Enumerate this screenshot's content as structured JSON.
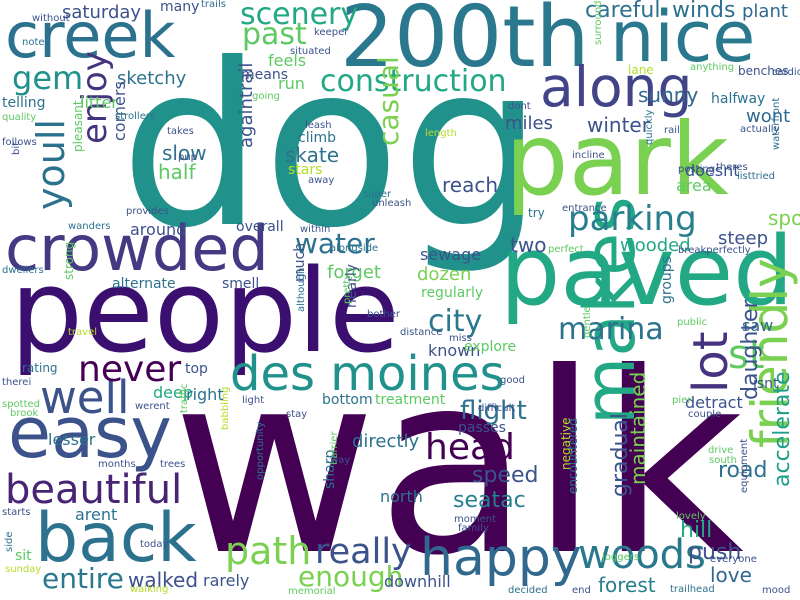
{
  "words": [
    {
      "text": "walk",
      "color": "#440154"
    },
    {
      "text": "dog",
      "color": "#21918c"
    },
    {
      "text": "people",
      "color": "#3b0f70"
    },
    {
      "text": "park",
      "color": "#7ad151"
    },
    {
      "text": "paved",
      "color": "#22a884"
    },
    {
      "text": "200th",
      "color": "#2a788e"
    },
    {
      "text": "creek",
      "color": "#2c728e"
    },
    {
      "text": "nice",
      "color": "#2a788e"
    },
    {
      "text": "crowded",
      "color": "#443983"
    },
    {
      "text": "easy",
      "color": "#3b528b"
    },
    {
      "text": "back",
      "color": "#2c728e"
    },
    {
      "text": "happy",
      "color": "#31688e"
    },
    {
      "text": "des moines",
      "color": "#21918c"
    },
    {
      "text": "makes",
      "color": "#22a884"
    },
    {
      "text": "along",
      "color": "#414487"
    },
    {
      "text": "beautiful",
      "color": "#482475"
    },
    {
      "text": "well",
      "color": "#3b528b"
    },
    {
      "text": "friendly",
      "color": "#7ad151"
    },
    {
      "text": "never",
      "color": "#440154"
    },
    {
      "text": "woods",
      "color": "#2a788e"
    },
    {
      "text": "path",
      "color": "#7ad151"
    },
    {
      "text": "lot",
      "color": "#46337e"
    },
    {
      "text": "st",
      "color": "#5ec962"
    },
    {
      "text": "really",
      "color": "#3b528b"
    },
    {
      "text": "entire",
      "color": "#2a788e"
    },
    {
      "text": "head",
      "color": "#440154"
    },
    {
      "text": "marina",
      "color": "#2c728e"
    },
    {
      "text": "gem",
      "color": "#21918c"
    },
    {
      "text": "parking",
      "color": "#277f8e"
    },
    {
      "text": "youll",
      "color": "#2c728e"
    },
    {
      "text": "enjoy",
      "color": "#46337e"
    },
    {
      "text": "construction",
      "color": "#22a884"
    },
    {
      "text": "past",
      "color": "#5ec962"
    },
    {
      "text": "scenery",
      "color": "#22a884"
    },
    {
      "text": "casual",
      "color": "#7ad151"
    },
    {
      "text": "water",
      "color": "#2c728e"
    },
    {
      "text": "city",
      "color": "#2a788e"
    },
    {
      "text": "enough",
      "color": "#7ad151"
    },
    {
      "text": "flight",
      "color": "#2c728e"
    },
    {
      "text": "speed",
      "color": "#3b528b"
    },
    {
      "text": "seatac",
      "color": "#277f8e"
    },
    {
      "text": "walked",
      "color": "#3b528b"
    },
    {
      "text": "forest",
      "color": "#277f8e"
    },
    {
      "text": "love",
      "color": "#31688e"
    },
    {
      "text": "accelerate",
      "color": "#1f9e89"
    },
    {
      "text": "gradual",
      "color": "#3b528b"
    },
    {
      "text": "maintained",
      "color": "#7ad151"
    },
    {
      "text": "hill",
      "color": "#22a884"
    },
    {
      "text": "push",
      "color": "#3b528b"
    },
    {
      "text": "road",
      "color": "#2c728e"
    },
    {
      "text": "daughter",
      "color": "#3b528b"
    },
    {
      "text": "careful",
      "color": "#2c728e"
    },
    {
      "text": "winds",
      "color": "#2c728e"
    },
    {
      "text": "plant",
      "color": "#31688e"
    },
    {
      "text": "saturday",
      "color": "#3b528b"
    },
    {
      "text": "many",
      "color": "#3b528b"
    },
    {
      "text": "trails",
      "color": "#2c728e"
    },
    {
      "text": "sketchy",
      "color": "#2c728e"
    },
    {
      "text": "means",
      "color": "#3b528b"
    },
    {
      "text": "feels",
      "color": "#5ec962"
    },
    {
      "text": "run",
      "color": "#5ec962"
    },
    {
      "text": "litter",
      "color": "#5ec962"
    },
    {
      "text": "slow",
      "color": "#2c728e"
    },
    {
      "text": "half",
      "color": "#5ec962"
    },
    {
      "text": "corners",
      "color": "#3b528b"
    },
    {
      "text": "skate",
      "color": "#2c728e"
    },
    {
      "text": "stars",
      "color": "#b5de2b"
    },
    {
      "text": "climb",
      "color": "#2c728e"
    },
    {
      "text": "againtrail",
      "color": "#3b528b"
    },
    {
      "text": "miles",
      "color": "#3b528b"
    },
    {
      "text": "winter",
      "color": "#3b528b"
    },
    {
      "text": "sunny",
      "color": "#31688e"
    },
    {
      "text": "wont",
      "color": "#31688e"
    },
    {
      "text": "area",
      "color": "#5ec962"
    },
    {
      "text": "doesnt",
      "color": "#3b528b"
    },
    {
      "text": "reach",
      "color": "#3b528b"
    },
    {
      "text": "spots",
      "color": "#7ad151"
    },
    {
      "text": "steep",
      "color": "#3b528b"
    },
    {
      "text": "two",
      "color": "#3b528b"
    },
    {
      "text": "wooded",
      "color": "#22a884"
    },
    {
      "text": "sewage",
      "color": "#3b528b"
    },
    {
      "text": "dozen",
      "color": "#7ad151"
    },
    {
      "text": "forget",
      "color": "#5ec962"
    },
    {
      "text": "around",
      "color": "#3b528b"
    },
    {
      "text": "overall",
      "color": "#3b528b"
    },
    {
      "text": "alternate",
      "color": "#2c728e"
    },
    {
      "text": "smell",
      "color": "#3b528b"
    },
    {
      "text": "much",
      "color": "#3b528b"
    },
    {
      "text": "nearly",
      "color": "#3b528b"
    },
    {
      "text": "known",
      "color": "#3b528b"
    },
    {
      "text": "regularly",
      "color": "#5ec962"
    },
    {
      "text": "explore",
      "color": "#5ec962"
    },
    {
      "text": "deep",
      "color": "#22a884"
    },
    {
      "text": "right",
      "color": "#2c728e"
    },
    {
      "text": "top",
      "color": "#3b528b"
    },
    {
      "text": "bottom",
      "color": "#2c728e"
    },
    {
      "text": "treatment",
      "color": "#5ec962"
    },
    {
      "text": "directly",
      "color": "#2c728e"
    },
    {
      "text": "passes",
      "color": "#3b528b"
    },
    {
      "text": "lesser",
      "color": "#2c728e"
    },
    {
      "text": "arent",
      "color": "#2c728e"
    },
    {
      "text": "sharp",
      "color": "#2c728e"
    },
    {
      "text": "north",
      "color": "#2c728e"
    },
    {
      "text": "rarely",
      "color": "#3b528b"
    },
    {
      "text": "downhill",
      "color": "#3b528b"
    },
    {
      "text": "isnt",
      "color": "#3b528b"
    },
    {
      "text": "detract",
      "color": "#3b528b"
    },
    {
      "text": "saw",
      "color": "#31688e"
    },
    {
      "text": "groups",
      "color": "#2c728e"
    },
    {
      "text": "negative",
      "color": "#b5de2b"
    },
    {
      "text": "encountered",
      "color": "#2c728e"
    },
    {
      "text": "lane",
      "color": "#b5de2b"
    },
    {
      "text": "benches",
      "color": "#3b528b"
    },
    {
      "text": "halfway",
      "color": "#2c728e"
    },
    {
      "text": "telling",
      "color": "#2c728e"
    },
    {
      "text": "quality",
      "color": "#5ec962"
    },
    {
      "text": "follows",
      "color": "#3b528b"
    },
    {
      "text": "pleasant",
      "color": "#5ec962"
    },
    {
      "text": "bit",
      "color": "#3b528b"
    },
    {
      "text": "strollers",
      "color": "#2c728e"
    },
    {
      "text": "takes",
      "color": "#3b528b"
    },
    {
      "text": "pup",
      "color": "#3b528b"
    },
    {
      "text": "provides",
      "color": "#3b528b"
    },
    {
      "text": "wanders",
      "color": "#2c728e"
    },
    {
      "text": "strong",
      "color": "#5ec962"
    },
    {
      "text": "dwellers",
      "color": "#2c728e"
    },
    {
      "text": "travel",
      "color": "#b5de2b"
    },
    {
      "text": "rating",
      "color": "#2c728e"
    },
    {
      "text": "therei",
      "color": "#3b528b"
    },
    {
      "text": "spotted",
      "color": "#5ec962"
    },
    {
      "text": "brook",
      "color": "#5ec962"
    },
    {
      "text": "werent",
      "color": "#3b528b"
    },
    {
      "text": "traffic",
      "color": "#5ec962"
    },
    {
      "text": "months",
      "color": "#3b528b"
    },
    {
      "text": "trees",
      "color": "#3b528b"
    },
    {
      "text": "babbling",
      "color": "#b5de2b"
    },
    {
      "text": "opportunity",
      "color": "#2c728e"
    },
    {
      "text": "today",
      "color": "#3b528b"
    },
    {
      "text": "sit",
      "color": "#5ec962"
    },
    {
      "text": "side",
      "color": "#2c728e"
    },
    {
      "text": "sunday",
      "color": "#b5de2b"
    },
    {
      "text": "starts",
      "color": "#3b528b"
    },
    {
      "text": "walking",
      "color": "#b5de2b"
    },
    {
      "text": "memorial",
      "color": "#5ec962"
    },
    {
      "text": "decided",
      "color": "#2c728e"
    },
    {
      "text": "end",
      "color": "#3b528b"
    },
    {
      "text": "trailhead",
      "color": "#2c728e"
    },
    {
      "text": "mood",
      "color": "#3b528b"
    },
    {
      "text": "without",
      "color": "#3b528b"
    },
    {
      "text": "note",
      "color": "#2c728e"
    },
    {
      "text": "keeper",
      "color": "#3b528b"
    },
    {
      "text": "situated",
      "color": "#3b528b"
    },
    {
      "text": "going",
      "color": "#5ec962"
    },
    {
      "text": "leash",
      "color": "#3b528b"
    },
    {
      "text": "away",
      "color": "#3b528b"
    },
    {
      "text": "super",
      "color": "#2c728e"
    },
    {
      "text": "unleash",
      "color": "#3b528b"
    },
    {
      "text": "within",
      "color": "#3b528b"
    },
    {
      "text": "alongside",
      "color": "#2c728e"
    },
    {
      "text": "bother",
      "color": "#3b528b"
    },
    {
      "text": "pretty",
      "color": "#5ec962"
    },
    {
      "text": "although",
      "color": "#2c728e"
    },
    {
      "text": "distance",
      "color": "#3b528b"
    },
    {
      "text": "miss",
      "color": "#3b528b"
    },
    {
      "text": "good",
      "color": "#3b528b"
    },
    {
      "text": "difficult",
      "color": "#3b528b"
    },
    {
      "text": "gentle",
      "color": "#5ec962"
    },
    {
      "text": "moment",
      "color": "#3b528b"
    },
    {
      "text": "family",
      "color": "#3b528b"
    },
    {
      "text": "light",
      "color": "#3b528b"
    },
    {
      "text": "stay",
      "color": "#3b528b"
    },
    {
      "text": "barrier",
      "color": "#5ec962"
    },
    {
      "text": "way",
      "color": "#3b528b"
    },
    {
      "text": "joggers",
      "color": "#5ec962"
    },
    {
      "text": "try",
      "color": "#2c728e"
    },
    {
      "text": "entrance",
      "color": "#3b528b"
    },
    {
      "text": "perfect",
      "color": "#5ec962"
    },
    {
      "text": "length",
      "color": "#b5de2b"
    },
    {
      "text": "dont",
      "color": "#3b528b"
    },
    {
      "text": "surroundings",
      "color": "#5ec962"
    },
    {
      "text": "rail",
      "color": "#3b528b"
    },
    {
      "text": "incline",
      "color": "#3b528b"
    },
    {
      "text": "quickly",
      "color": "#2c728e"
    },
    {
      "text": "posting",
      "color": "#3b528b"
    },
    {
      "text": "theres",
      "color": "#3b528b"
    },
    {
      "text": "listtried",
      "color": "#2c728e"
    },
    {
      "text": "breakperfectly",
      "color": "#3b528b"
    },
    {
      "text": "public",
      "color": "#5ec962"
    },
    {
      "text": "pier",
      "color": "#5ec962"
    },
    {
      "text": "couple",
      "color": "#3b528b"
    },
    {
      "text": "drive",
      "color": "#5ec962"
    },
    {
      "text": "south",
      "color": "#5ec962"
    },
    {
      "text": "lovely",
      "color": "#5ec962"
    },
    {
      "text": "everyone",
      "color": "#3b528b"
    },
    {
      "text": "equipment",
      "color": "#3b528b"
    },
    {
      "text": "anything",
      "color": "#5ec962"
    },
    {
      "text": "actually",
      "color": "#3b528b"
    },
    {
      "text": "cardio",
      "color": "#3b528b"
    },
    {
      "text": "waterfront",
      "color": "#2c728e"
    }
  ]
}
